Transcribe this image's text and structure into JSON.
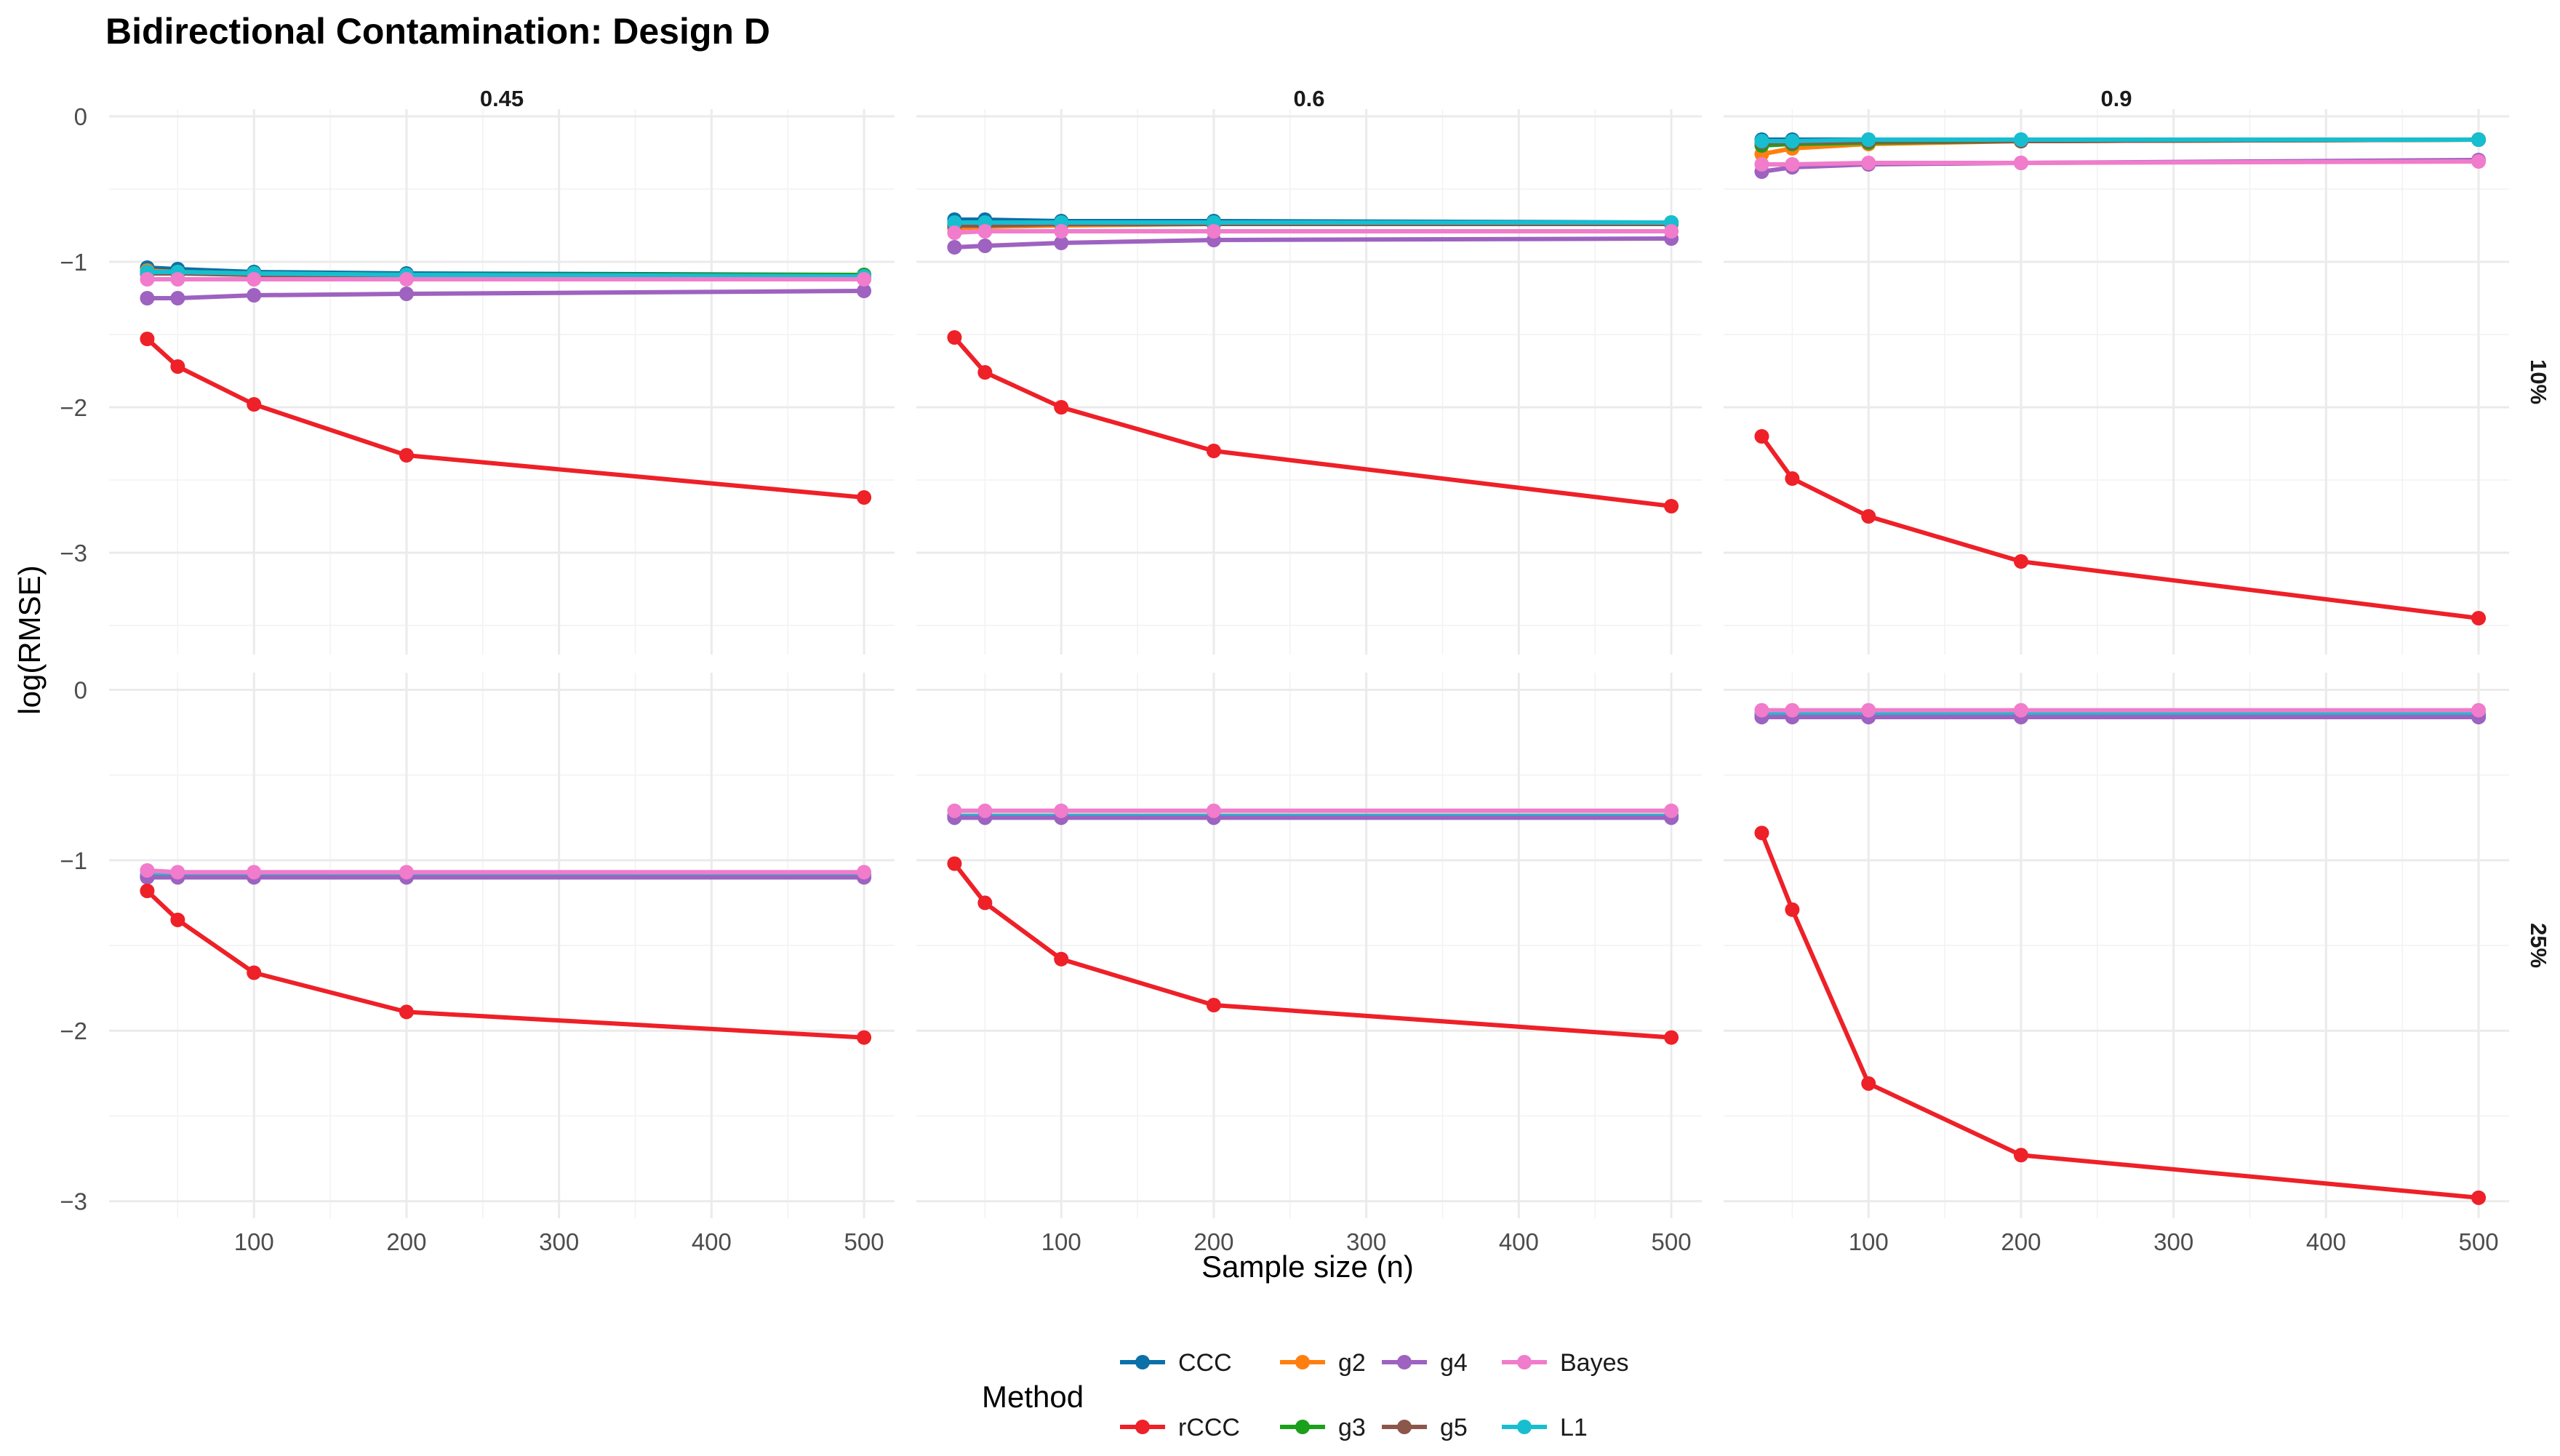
{
  "chart_data": {
    "type": "line",
    "title": "Bidirectional Contamination: Design D",
    "xlabel": "Sample size (n)",
    "ylabel": "log(RMSE)",
    "x": [
      30,
      50,
      100,
      200,
      500
    ],
    "xlim": [
      5,
      520
    ],
    "x_ticks": [
      100,
      200,
      300,
      400,
      500
    ],
    "x_tick_labels": [
      "100",
      "200",
      "300",
      "400",
      "500"
    ],
    "col_facets": [
      "0.45",
      "0.6",
      "0.9"
    ],
    "row_facets": [
      "10%",
      "25%"
    ],
    "row_ylim": [
      [
        -3.7,
        0.05
      ],
      [
        -3.1,
        0.1
      ]
    ],
    "y_ticks": [
      0,
      -1,
      -2,
      -3
    ],
    "y_tick_labels": [
      "0",
      "−1",
      "−2",
      "−3"
    ],
    "legend": {
      "title": "Method",
      "position": "bottom",
      "entries": [
        "CCC",
        "rCCC",
        "g2",
        "g3",
        "g4",
        "g5",
        "Bayes",
        "L1"
      ]
    },
    "methods": [
      {
        "name": "CCC",
        "color": "#0b6fa8"
      },
      {
        "name": "rCCC",
        "color": "#ee2028"
      },
      {
        "name": "g2",
        "color": "#ff7f0e"
      },
      {
        "name": "g3",
        "color": "#1aa01a"
      },
      {
        "name": "g4",
        "color": "#9e62c0"
      },
      {
        "name": "g5",
        "color": "#8c564b"
      },
      {
        "name": "Bayes",
        "color": "#f07ccb"
      },
      {
        "name": "L1",
        "color": "#17becf"
      }
    ],
    "panels": [
      {
        "row": 0,
        "col": 0,
        "series": {
          "CCC": [
            -1.04,
            -1.05,
            -1.07,
            -1.08,
            -1.09
          ],
          "rCCC": [
            -1.53,
            -1.72,
            -1.98,
            -2.33,
            -2.62
          ],
          "g2": [
            -1.06,
            -1.07,
            -1.08,
            -1.09,
            -1.09
          ],
          "g3": [
            -1.07,
            -1.07,
            -1.08,
            -1.09,
            -1.09
          ],
          "g4": [
            -1.25,
            -1.25,
            -1.23,
            -1.22,
            -1.2
          ],
          "g5": [
            -1.08,
            -1.08,
            -1.09,
            -1.1,
            -1.1
          ],
          "Bayes": [
            -1.12,
            -1.12,
            -1.12,
            -1.12,
            -1.12
          ],
          "L1": [
            -1.07,
            -1.07,
            -1.08,
            -1.09,
            -1.1
          ]
        }
      },
      {
        "row": 0,
        "col": 1,
        "series": {
          "CCC": [
            -0.71,
            -0.71,
            -0.72,
            -0.72,
            -0.73
          ],
          "rCCC": [
            -1.52,
            -1.76,
            -2.0,
            -2.3,
            -2.68
          ],
          "g2": [
            -0.77,
            -0.76,
            -0.75,
            -0.74,
            -0.73
          ],
          "g3": [
            -0.75,
            -0.74,
            -0.73,
            -0.73,
            -0.73
          ],
          "g4": [
            -0.9,
            -0.89,
            -0.87,
            -0.85,
            -0.84
          ],
          "g5": [
            -0.75,
            -0.75,
            -0.74,
            -0.74,
            -0.74
          ],
          "Bayes": [
            -0.8,
            -0.79,
            -0.79,
            -0.79,
            -0.79
          ],
          "L1": [
            -0.73,
            -0.73,
            -0.73,
            -0.73,
            -0.73
          ]
        }
      },
      {
        "row": 0,
        "col": 2,
        "series": {
          "CCC": [
            -0.16,
            -0.16,
            -0.16,
            -0.16,
            -0.16
          ],
          "rCCC": [
            -2.2,
            -2.49,
            -2.75,
            -3.06,
            -3.45
          ],
          "g2": [
            -0.26,
            -0.22,
            -0.19,
            -0.17,
            -0.16
          ],
          "g3": [
            -0.2,
            -0.19,
            -0.18,
            -0.17,
            -0.16
          ],
          "g4": [
            -0.38,
            -0.35,
            -0.33,
            -0.32,
            -0.3
          ],
          "g5": [
            -0.18,
            -0.18,
            -0.17,
            -0.17,
            -0.16
          ],
          "Bayes": [
            -0.33,
            -0.33,
            -0.32,
            -0.32,
            -0.31
          ],
          "L1": [
            -0.17,
            -0.17,
            -0.16,
            -0.16,
            -0.16
          ]
        }
      },
      {
        "row": 1,
        "col": 0,
        "series": {
          "CCC": [
            -1.1,
            -1.1,
            -1.1,
            -1.1,
            -1.1
          ],
          "rCCC": [
            -1.18,
            -1.35,
            -1.66,
            -1.89,
            -2.04
          ],
          "g2": [
            -1.09,
            -1.09,
            -1.09,
            -1.09,
            -1.09
          ],
          "g3": [
            -1.09,
            -1.09,
            -1.09,
            -1.09,
            -1.09
          ],
          "g4": [
            -1.1,
            -1.1,
            -1.1,
            -1.1,
            -1.1
          ],
          "g5": [
            -1.09,
            -1.09,
            -1.09,
            -1.09,
            -1.09
          ],
          "Bayes": [
            -1.06,
            -1.07,
            -1.07,
            -1.07,
            -1.07
          ],
          "L1": [
            -1.09,
            -1.09,
            -1.09,
            -1.09,
            -1.09
          ]
        }
      },
      {
        "row": 1,
        "col": 1,
        "series": {
          "CCC": [
            -0.75,
            -0.75,
            -0.75,
            -0.75,
            -0.75
          ],
          "rCCC": [
            -1.02,
            -1.25,
            -1.58,
            -1.85,
            -2.04
          ],
          "g2": [
            -0.74,
            -0.74,
            -0.74,
            -0.74,
            -0.74
          ],
          "g3": [
            -0.74,
            -0.74,
            -0.74,
            -0.74,
            -0.74
          ],
          "g4": [
            -0.75,
            -0.75,
            -0.75,
            -0.75,
            -0.75
          ],
          "g5": [
            -0.74,
            -0.74,
            -0.74,
            -0.74,
            -0.74
          ],
          "Bayes": [
            -0.71,
            -0.71,
            -0.71,
            -0.71,
            -0.71
          ],
          "L1": [
            -0.74,
            -0.74,
            -0.74,
            -0.74,
            -0.74
          ]
        }
      },
      {
        "row": 1,
        "col": 2,
        "series": {
          "CCC": [
            -0.16,
            -0.16,
            -0.16,
            -0.16,
            -0.16
          ],
          "rCCC": [
            -0.84,
            -1.29,
            -2.31,
            -2.73,
            -2.98
          ],
          "g2": [
            -0.15,
            -0.15,
            -0.15,
            -0.15,
            -0.15
          ],
          "g3": [
            -0.15,
            -0.15,
            -0.15,
            -0.15,
            -0.15
          ],
          "g4": [
            -0.16,
            -0.16,
            -0.16,
            -0.16,
            -0.16
          ],
          "g5": [
            -0.15,
            -0.15,
            -0.15,
            -0.15,
            -0.15
          ],
          "Bayes": [
            -0.12,
            -0.12,
            -0.12,
            -0.12,
            -0.12
          ],
          "L1": [
            -0.14,
            -0.14,
            -0.14,
            -0.14,
            -0.14
          ]
        }
      }
    ]
  }
}
